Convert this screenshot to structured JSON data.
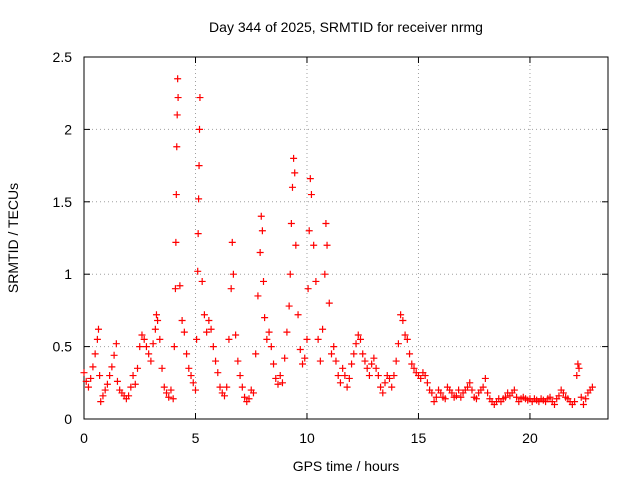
{
  "chart_data": {
    "type": "scatter",
    "title": "Day 344 of 2025, SRMTID for receiver nrmg",
    "xlabel": "GPS time / hours",
    "ylabel": "SRMTID / TECUs",
    "xlim": [
      0,
      23.5
    ],
    "ylim": [
      0,
      2.5
    ],
    "x_ticks": [
      0,
      5,
      10,
      15,
      20
    ],
    "x_tick_labels": [
      "0",
      "5",
      "10",
      "15",
      "20"
    ],
    "y_ticks": [
      0,
      0.5,
      1,
      1.5,
      2,
      2.5
    ],
    "y_tick_labels": [
      "0",
      "0.5",
      "1",
      "1.5",
      "2",
      "2.5"
    ],
    "grid": true,
    "marker": "+",
    "marker_color": "#ff0000",
    "series": [
      {
        "name": "SRMTID",
        "points": [
          [
            0.0,
            0.32
          ],
          [
            0.1,
            0.26
          ],
          [
            0.2,
            0.22
          ],
          [
            0.3,
            0.28
          ],
          [
            0.4,
            0.36
          ],
          [
            0.5,
            0.45
          ],
          [
            0.6,
            0.55
          ],
          [
            0.65,
            0.62
          ],
          [
            0.7,
            0.3
          ],
          [
            0.75,
            0.12
          ],
          [
            0.85,
            0.16
          ],
          [
            0.95,
            0.2
          ],
          [
            1.05,
            0.24
          ],
          [
            1.15,
            0.3
          ],
          [
            1.25,
            0.36
          ],
          [
            1.35,
            0.44
          ],
          [
            1.45,
            0.52
          ],
          [
            1.5,
            0.26
          ],
          [
            1.6,
            0.2
          ],
          [
            1.7,
            0.18
          ],
          [
            1.8,
            0.16
          ],
          [
            1.9,
            0.14
          ],
          [
            2.0,
            0.16
          ],
          [
            2.1,
            0.22
          ],
          [
            2.2,
            0.3
          ],
          [
            2.3,
            0.24
          ],
          [
            2.4,
            0.35
          ],
          [
            2.5,
            0.5
          ],
          [
            2.6,
            0.58
          ],
          [
            2.7,
            0.55
          ],
          [
            2.8,
            0.5
          ],
          [
            2.9,
            0.45
          ],
          [
            3.0,
            0.4
          ],
          [
            3.1,
            0.52
          ],
          [
            3.2,
            0.62
          ],
          [
            3.25,
            0.72
          ],
          [
            3.3,
            0.68
          ],
          [
            3.4,
            0.55
          ],
          [
            3.5,
            0.35
          ],
          [
            3.6,
            0.22
          ],
          [
            3.7,
            0.18
          ],
          [
            3.8,
            0.15
          ],
          [
            3.9,
            0.2
          ],
          [
            4.0,
            0.14
          ],
          [
            4.05,
            0.5
          ],
          [
            4.1,
            0.9
          ],
          [
            4.12,
            1.22
          ],
          [
            4.14,
            1.55
          ],
          [
            4.16,
            1.88
          ],
          [
            4.18,
            2.1
          ],
          [
            4.2,
            2.35
          ],
          [
            4.22,
            2.22
          ],
          [
            4.3,
            0.92
          ],
          [
            4.4,
            0.68
          ],
          [
            4.5,
            0.6
          ],
          [
            4.6,
            0.45
          ],
          [
            4.7,
            0.35
          ],
          [
            4.8,
            0.3
          ],
          [
            4.9,
            0.25
          ],
          [
            5.0,
            0.2
          ],
          [
            5.05,
            0.55
          ],
          [
            5.1,
            1.02
          ],
          [
            5.12,
            1.28
          ],
          [
            5.14,
            1.52
          ],
          [
            5.16,
            1.75
          ],
          [
            5.18,
            2.0
          ],
          [
            5.2,
            2.22
          ],
          [
            5.3,
            0.95
          ],
          [
            5.4,
            0.72
          ],
          [
            5.5,
            0.6
          ],
          [
            5.6,
            0.68
          ],
          [
            5.7,
            0.62
          ],
          [
            5.8,
            0.5
          ],
          [
            5.9,
            0.4
          ],
          [
            6.0,
            0.32
          ],
          [
            6.1,
            0.22
          ],
          [
            6.2,
            0.18
          ],
          [
            6.3,
            0.16
          ],
          [
            6.4,
            0.22
          ],
          [
            6.5,
            0.55
          ],
          [
            6.6,
            0.9
          ],
          [
            6.65,
            1.22
          ],
          [
            6.7,
            1.0
          ],
          [
            6.8,
            0.58
          ],
          [
            6.9,
            0.4
          ],
          [
            7.0,
            0.3
          ],
          [
            7.1,
            0.22
          ],
          [
            7.2,
            0.15
          ],
          [
            7.3,
            0.12
          ],
          [
            7.4,
            0.14
          ],
          [
            7.5,
            0.2
          ],
          [
            7.6,
            0.18
          ],
          [
            7.7,
            0.45
          ],
          [
            7.8,
            0.85
          ],
          [
            7.9,
            1.15
          ],
          [
            7.95,
            1.4
          ],
          [
            8.0,
            1.3
          ],
          [
            8.05,
            0.95
          ],
          [
            8.1,
            0.7
          ],
          [
            8.2,
            0.55
          ],
          [
            8.3,
            0.6
          ],
          [
            8.4,
            0.5
          ],
          [
            8.5,
            0.38
          ],
          [
            8.6,
            0.28
          ],
          [
            8.7,
            0.24
          ],
          [
            8.8,
            0.3
          ],
          [
            8.9,
            0.25
          ],
          [
            9.0,
            0.42
          ],
          [
            9.1,
            0.6
          ],
          [
            9.2,
            0.78
          ],
          [
            9.25,
            1.0
          ],
          [
            9.3,
            1.35
          ],
          [
            9.35,
            1.6
          ],
          [
            9.4,
            1.8
          ],
          [
            9.45,
            1.7
          ],
          [
            9.5,
            1.2
          ],
          [
            9.6,
            0.72
          ],
          [
            9.7,
            0.48
          ],
          [
            9.8,
            0.38
          ],
          [
            9.9,
            0.42
          ],
          [
            10.0,
            0.55
          ],
          [
            10.05,
            0.9
          ],
          [
            10.1,
            1.3
          ],
          [
            10.15,
            1.66
          ],
          [
            10.2,
            1.55
          ],
          [
            10.3,
            1.2
          ],
          [
            10.4,
            0.95
          ],
          [
            10.5,
            0.55
          ],
          [
            10.6,
            0.4
          ],
          [
            10.7,
            0.62
          ],
          [
            10.8,
            1.0
          ],
          [
            10.85,
            1.35
          ],
          [
            10.9,
            1.2
          ],
          [
            11.0,
            0.8
          ],
          [
            11.1,
            0.45
          ],
          [
            11.2,
            0.5
          ],
          [
            11.3,
            0.4
          ],
          [
            11.4,
            0.3
          ],
          [
            11.5,
            0.25
          ],
          [
            11.6,
            0.35
          ],
          [
            11.7,
            0.3
          ],
          [
            11.8,
            0.22
          ],
          [
            11.9,
            0.28
          ],
          [
            12.0,
            0.38
          ],
          [
            12.1,
            0.45
          ],
          [
            12.2,
            0.52
          ],
          [
            12.3,
            0.58
          ],
          [
            12.4,
            0.55
          ],
          [
            12.5,
            0.45
          ],
          [
            12.6,
            0.4
          ],
          [
            12.7,
            0.35
          ],
          [
            12.8,
            0.3
          ],
          [
            12.9,
            0.38
          ],
          [
            13.0,
            0.42
          ],
          [
            13.1,
            0.35
          ],
          [
            13.2,
            0.3
          ],
          [
            13.3,
            0.22
          ],
          [
            13.4,
            0.18
          ],
          [
            13.5,
            0.25
          ],
          [
            13.6,
            0.3
          ],
          [
            13.7,
            0.28
          ],
          [
            13.8,
            0.22
          ],
          [
            13.9,
            0.3
          ],
          [
            14.0,
            0.4
          ],
          [
            14.1,
            0.52
          ],
          [
            14.2,
            0.72
          ],
          [
            14.3,
            0.68
          ],
          [
            14.4,
            0.58
          ],
          [
            14.5,
            0.55
          ],
          [
            14.6,
            0.45
          ],
          [
            14.7,
            0.38
          ],
          [
            14.8,
            0.35
          ],
          [
            14.9,
            0.32
          ],
          [
            15.0,
            0.3
          ],
          [
            15.1,
            0.28
          ],
          [
            15.2,
            0.32
          ],
          [
            15.3,
            0.3
          ],
          [
            15.4,
            0.25
          ],
          [
            15.5,
            0.2
          ],
          [
            15.6,
            0.18
          ],
          [
            15.7,
            0.12
          ],
          [
            15.8,
            0.15
          ],
          [
            15.9,
            0.2
          ],
          [
            16.0,
            0.18
          ],
          [
            16.1,
            0.15
          ],
          [
            16.2,
            0.14
          ],
          [
            16.3,
            0.22
          ],
          [
            16.4,
            0.2
          ],
          [
            16.5,
            0.18
          ],
          [
            16.6,
            0.15
          ],
          [
            16.7,
            0.16
          ],
          [
            16.8,
            0.2
          ],
          [
            16.9,
            0.15
          ],
          [
            17.0,
            0.18
          ],
          [
            17.1,
            0.2
          ],
          [
            17.2,
            0.22
          ],
          [
            17.3,
            0.25
          ],
          [
            17.4,
            0.2
          ],
          [
            17.5,
            0.15
          ],
          [
            17.6,
            0.14
          ],
          [
            17.7,
            0.18
          ],
          [
            17.8,
            0.2
          ],
          [
            17.9,
            0.22
          ],
          [
            18.0,
            0.28
          ],
          [
            18.1,
            0.18
          ],
          [
            18.2,
            0.14
          ],
          [
            18.3,
            0.12
          ],
          [
            18.4,
            0.1
          ],
          [
            18.5,
            0.12
          ],
          [
            18.6,
            0.14
          ],
          [
            18.7,
            0.12
          ],
          [
            18.8,
            0.14
          ],
          [
            18.9,
            0.15
          ],
          [
            19.0,
            0.18
          ],
          [
            19.1,
            0.16
          ],
          [
            19.2,
            0.18
          ],
          [
            19.3,
            0.2
          ],
          [
            19.4,
            0.15
          ],
          [
            19.5,
            0.12
          ],
          [
            19.6,
            0.14
          ],
          [
            19.7,
            0.15
          ],
          [
            19.8,
            0.14
          ],
          [
            19.9,
            0.13
          ],
          [
            20.0,
            0.14
          ],
          [
            20.1,
            0.12
          ],
          [
            20.2,
            0.14
          ],
          [
            20.3,
            0.13
          ],
          [
            20.4,
            0.12
          ],
          [
            20.5,
            0.14
          ],
          [
            20.6,
            0.13
          ],
          [
            20.7,
            0.12
          ],
          [
            20.8,
            0.14
          ],
          [
            20.9,
            0.15
          ],
          [
            21.0,
            0.12
          ],
          [
            21.1,
            0.1
          ],
          [
            21.2,
            0.14
          ],
          [
            21.3,
            0.16
          ],
          [
            21.4,
            0.2
          ],
          [
            21.5,
            0.18
          ],
          [
            21.6,
            0.15
          ],
          [
            21.7,
            0.14
          ],
          [
            21.8,
            0.12
          ],
          [
            21.9,
            0.1
          ],
          [
            22.0,
            0.12
          ],
          [
            22.1,
            0.3
          ],
          [
            22.15,
            0.38
          ],
          [
            22.2,
            0.35
          ],
          [
            22.3,
            0.15
          ],
          [
            22.4,
            0.1
          ],
          [
            22.5,
            0.14
          ],
          [
            22.6,
            0.18
          ],
          [
            22.7,
            0.2
          ],
          [
            22.8,
            0.22
          ]
        ]
      }
    ]
  }
}
